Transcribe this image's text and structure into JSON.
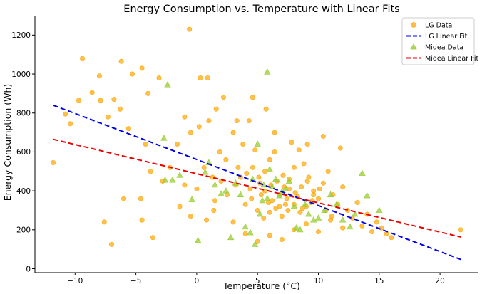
{
  "chart_data": {
    "type": "scatter",
    "title": "Energy Consumption vs. Temperature with Linear Fits",
    "xlabel": "Temperature (°C)",
    "ylabel": "Energy Consumption (Wh)",
    "xlim": [
      -13.3,
      23.1
    ],
    "ylim": [
      -20,
      1300
    ],
    "xticks": [
      -10,
      -5,
      0,
      5,
      10,
      15,
      20
    ],
    "yticks": [
      0,
      200,
      400,
      600,
      800,
      1000,
      1200
    ],
    "grid": false,
    "legend_position": "top-right",
    "legend": [
      {
        "label": "LG Data",
        "kind": "marker-circle",
        "color": "#ffa500"
      },
      {
        "label": "LG Linear Fit",
        "kind": "line",
        "color": "#0000ee"
      },
      {
        "label": "Midea Data",
        "kind": "marker-triangle",
        "color": "#9acd32"
      },
      {
        "label": "Midea Linear Fit",
        "kind": "line",
        "color": "#ee0000"
      }
    ],
    "series": [
      {
        "name": "LG Data",
        "kind": "scatter",
        "marker": "circle",
        "color": "#ffa500",
        "points": [
          [
            -11.8,
            545
          ],
          [
            -10.8,
            795
          ],
          [
            -10.4,
            745
          ],
          [
            -9.4,
            1080
          ],
          [
            -9.7,
            865
          ],
          [
            -8.6,
            905
          ],
          [
            -8.0,
            990
          ],
          [
            -7.9,
            865
          ],
          [
            -7.3,
            780
          ],
          [
            -6.2,
            1065
          ],
          [
            -5.3,
            1000
          ],
          [
            -4.5,
            1030
          ],
          [
            -4.0,
            900
          ],
          [
            -3.1,
            980
          ],
          [
            -0.6,
            1230
          ],
          [
            0.3,
            980
          ],
          [
            0.9,
            980
          ],
          [
            -7.6,
            240
          ],
          [
            -7.0,
            125
          ],
          [
            -6.0,
            360
          ],
          [
            -4.6,
            360
          ],
          [
            -4.5,
            250
          ],
          [
            -3.6,
            160
          ],
          [
            -1.4,
            320
          ],
          [
            -0.5,
            270
          ],
          [
            0.8,
            250
          ],
          [
            1.4,
            300
          ],
          [
            -3.8,
            500
          ],
          [
            -2.2,
            520
          ],
          [
            -1.6,
            640
          ],
          [
            -1.0,
            780
          ],
          [
            -0.5,
            700
          ],
          [
            0.2,
            730
          ],
          [
            1.0,
            760
          ],
          [
            1.6,
            820
          ],
          [
            -4.2,
            640
          ],
          [
            -5.6,
            720
          ],
          [
            -6.3,
            820
          ],
          [
            -6.8,
            870
          ],
          [
            -2.8,
            450
          ],
          [
            -1.0,
            430
          ],
          [
            0.0,
            410
          ],
          [
            0.6,
            520
          ],
          [
            1.3,
            470
          ],
          [
            1.9,
            600
          ],
          [
            2.4,
            560
          ],
          [
            3.0,
            700
          ],
          [
            3.4,
            520
          ],
          [
            3.8,
            640
          ],
          [
            4.3,
            760
          ],
          [
            4.8,
            610
          ],
          [
            5.2,
            440
          ],
          [
            5.6,
            500
          ],
          [
            6.0,
            560
          ],
          [
            6.4,
            700
          ],
          [
            6.8,
            380
          ],
          [
            7.2,
            420
          ],
          [
            7.6,
            460
          ],
          [
            8.0,
            520
          ],
          [
            8.4,
            610
          ],
          [
            8.8,
            540
          ],
          [
            9.2,
            470
          ],
          [
            9.6,
            400
          ],
          [
            10.0,
            360
          ],
          [
            10.4,
            440
          ],
          [
            10.8,
            500
          ],
          [
            11.2,
            380
          ],
          [
            11.6,
            330
          ],
          [
            12.0,
            420
          ],
          [
            12.4,
            300
          ],
          [
            12.8,
            260
          ],
          [
            13.2,
            340
          ],
          [
            13.6,
            220
          ],
          [
            14.0,
            280
          ],
          [
            14.4,
            190
          ],
          [
            14.8,
            240
          ],
          [
            15.2,
            210
          ],
          [
            15.6,
            180
          ],
          [
            16.0,
            160
          ],
          [
            21.7,
            200
          ],
          [
            4.0,
            330
          ],
          [
            4.5,
            360
          ],
          [
            5.0,
            300
          ],
          [
            5.5,
            260
          ],
          [
            6.0,
            290
          ],
          [
            6.5,
            310
          ],
          [
            7.0,
            270
          ],
          [
            7.5,
            300
          ],
          [
            8.0,
            330
          ],
          [
            8.5,
            290
          ],
          [
            9.0,
            320
          ],
          [
            9.5,
            350
          ],
          [
            3.2,
            430
          ],
          [
            3.6,
            470
          ],
          [
            4.1,
            490
          ],
          [
            4.6,
            520
          ],
          [
            5.1,
            470
          ],
          [
            5.6,
            400
          ],
          [
            6.1,
            430
          ],
          [
            6.6,
            450
          ],
          [
            7.1,
            480
          ],
          [
            7.6,
            410
          ],
          [
            8.1,
            390
          ],
          [
            8.6,
            420
          ],
          [
            9.1,
            450
          ],
          [
            9.6,
            380
          ],
          [
            10.1,
            410
          ],
          [
            10.6,
            300
          ],
          [
            11.1,
            270
          ],
          [
            2.5,
            380
          ],
          [
            2.0,
            450
          ],
          [
            1.5,
            350
          ],
          [
            3.0,
            240
          ],
          [
            4.0,
            180
          ],
          [
            5.0,
            140
          ],
          [
            6.0,
            170
          ],
          [
            7.0,
            150
          ],
          [
            8.0,
            200
          ],
          [
            9.0,
            230
          ],
          [
            10.0,
            190
          ],
          [
            11.0,
            250
          ],
          [
            12.0,
            210
          ],
          [
            2.2,
            880
          ],
          [
            3.3,
            760
          ],
          [
            4.6,
            880
          ],
          [
            5.7,
            820
          ],
          [
            6.4,
            600
          ],
          [
            7.8,
            650
          ],
          [
            9.1,
            640
          ],
          [
            10.4,
            680
          ],
          [
            11.8,
            620
          ],
          [
            4.4,
            410
          ],
          [
            5.3,
            380
          ],
          [
            6.2,
            350
          ],
          [
            7.4,
            360
          ],
          [
            8.3,
            370
          ],
          [
            9.4,
            340
          ],
          [
            6.8,
            320
          ],
          [
            7.3,
            330
          ],
          [
            8.7,
            310
          ],
          [
            5.9,
            340
          ]
        ]
      },
      {
        "name": "Midea Data",
        "kind": "scatter",
        "marker": "triangle",
        "color": "#9acd32",
        "points": [
          [
            -2.4,
            945
          ],
          [
            -2.7,
            670
          ],
          [
            -2.6,
            455
          ],
          [
            -2.0,
            455
          ],
          [
            -1.4,
            480
          ],
          [
            -0.4,
            355
          ],
          [
            0.1,
            145
          ],
          [
            0.7,
            495
          ],
          [
            1.0,
            545
          ],
          [
            1.5,
            430
          ],
          [
            2.0,
            385
          ],
          [
            2.4,
            400
          ],
          [
            2.8,
            160
          ],
          [
            3.2,
            440
          ],
          [
            3.6,
            380
          ],
          [
            4.0,
            215
          ],
          [
            4.4,
            185
          ],
          [
            4.6,
            460
          ],
          [
            4.8,
            125
          ],
          [
            5.0,
            640
          ],
          [
            5.2,
            280
          ],
          [
            5.4,
            350
          ],
          [
            5.5,
            430
          ],
          [
            5.8,
            360
          ],
          [
            6.0,
            510
          ],
          [
            6.2,
            420
          ],
          [
            6.5,
            460
          ],
          [
            6.8,
            375
          ],
          [
            7.0,
            395
          ],
          [
            7.3,
            410
          ],
          [
            7.6,
            450
          ],
          [
            8.0,
            320
          ],
          [
            8.2,
            210
          ],
          [
            8.5,
            200
          ],
          [
            8.9,
            330
          ],
          [
            9.2,
            280
          ],
          [
            9.6,
            250
          ],
          [
            10.0,
            260
          ],
          [
            10.5,
            300
          ],
          [
            11.0,
            380
          ],
          [
            11.5,
            330
          ],
          [
            12.0,
            250
          ],
          [
            12.6,
            215
          ],
          [
            13.0,
            280
          ],
          [
            13.6,
            490
          ],
          [
            14.0,
            375
          ],
          [
            15.0,
            300
          ],
          [
            5.8,
            1010
          ]
        ]
      },
      {
        "name": "LG Linear Fit",
        "kind": "line",
        "style": "dashed",
        "color": "#0000ee",
        "points": [
          [
            -11.8,
            840
          ],
          [
            21.7,
            48
          ]
        ]
      },
      {
        "name": "Midea Linear Fit",
        "kind": "line",
        "style": "dashed",
        "color": "#ee0000",
        "points": [
          [
            -11.8,
            665
          ],
          [
            21.7,
            163
          ]
        ]
      }
    ]
  }
}
